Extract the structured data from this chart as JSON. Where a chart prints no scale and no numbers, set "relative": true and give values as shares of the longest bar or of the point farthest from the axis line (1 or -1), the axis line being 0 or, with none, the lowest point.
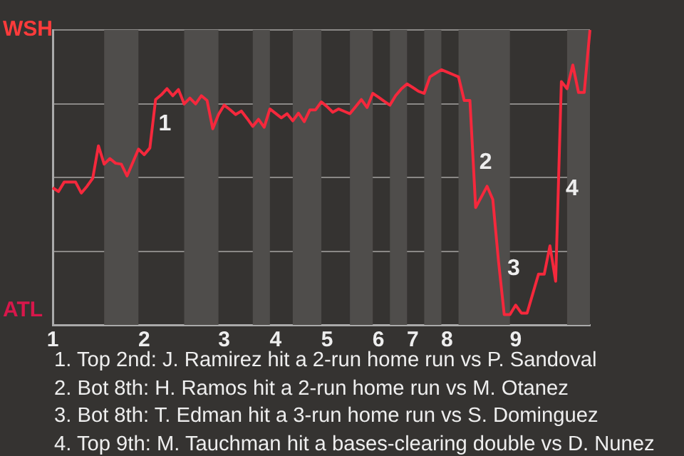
{
  "chart_data": {
    "type": "line",
    "relative": true,
    "grid": "y",
    "legend": false,
    "categories": [
      "1",
      null,
      null,
      null,
      null,
      null,
      null,
      null,
      null,
      null,
      null,
      null,
      null,
      null,
      null,
      null,
      "2",
      null,
      null,
      null,
      null,
      null,
      null,
      null,
      null,
      null,
      null,
      null,
      null,
      null,
      "3",
      null,
      null,
      null,
      null,
      null,
      null,
      null,
      null,
      "4",
      null,
      null,
      null,
      null,
      null,
      null,
      null,
      null,
      "5",
      null,
      null,
      null,
      null,
      null,
      null,
      null,
      null,
      "6",
      null,
      null,
      null,
      null,
      null,
      "7",
      null,
      null,
      null,
      null,
      null,
      "8",
      null,
      null,
      null,
      null,
      null,
      null,
      null,
      null,
      null,
      null,
      null,
      "9",
      null,
      null,
      null,
      null,
      null,
      null,
      null,
      null,
      null,
      null,
      null,
      null,
      null
    ],
    "series": [
      {
        "color": "#f5283c",
        "values": [
          0.465,
          0.452,
          0.484,
          0.484,
          0.484,
          0.447,
          0.47,
          0.497,
          0.607,
          0.545,
          0.564,
          0.548,
          0.545,
          0.505,
          0.55,
          0.596,
          0.577,
          0.6,
          0.764,
          0.78,
          0.801,
          0.777,
          0.798,
          0.749,
          0.769,
          0.749,
          0.777,
          0.761,
          0.665,
          0.713,
          0.745,
          0.73,
          0.713,
          0.725,
          0.7,
          0.673,
          0.697,
          0.67,
          0.732,
          0.717,
          0.702,
          0.716,
          0.692,
          0.718,
          0.689,
          0.729,
          0.729,
          0.756,
          0.74,
          0.721,
          0.732,
          0.724,
          0.716,
          0.74,
          0.764,
          0.737,
          0.785,
          0.772,
          0.758,
          0.745,
          0.777,
          0.8,
          0.817,
          0.805,
          0.792,
          0.785,
          0.841,
          0.853,
          0.865,
          0.857,
          0.849,
          0.841,
          0.761,
          0.761,
          0.398,
          0.434,
          0.47,
          0.425,
          0.216,
          0.035,
          0.035,
          0.067,
          0.04,
          0.04,
          0.106,
          0.172,
          0.172,
          0.268,
          0.148,
          0.825,
          0.801,
          0.881,
          0.788,
          0.788,
          1
        ]
      }
    ],
    "annotations": [
      "WSH",
      "ATL",
      "1",
      "2",
      "3",
      "4",
      "1. Top 2nd: J. Ramirez hit a 2-run home run vs P. Sandoval",
      "2. Bot 8th: H. Ramos hit a 2-run home run vs M. Otanez",
      "3. Bot 8th: T. Edman hit a 3-run home run vs S. Dominguez",
      "4. Top 9th: M. Tauchman hit a bases-clearing double vs D. Nunez"
    ]
  }
}
